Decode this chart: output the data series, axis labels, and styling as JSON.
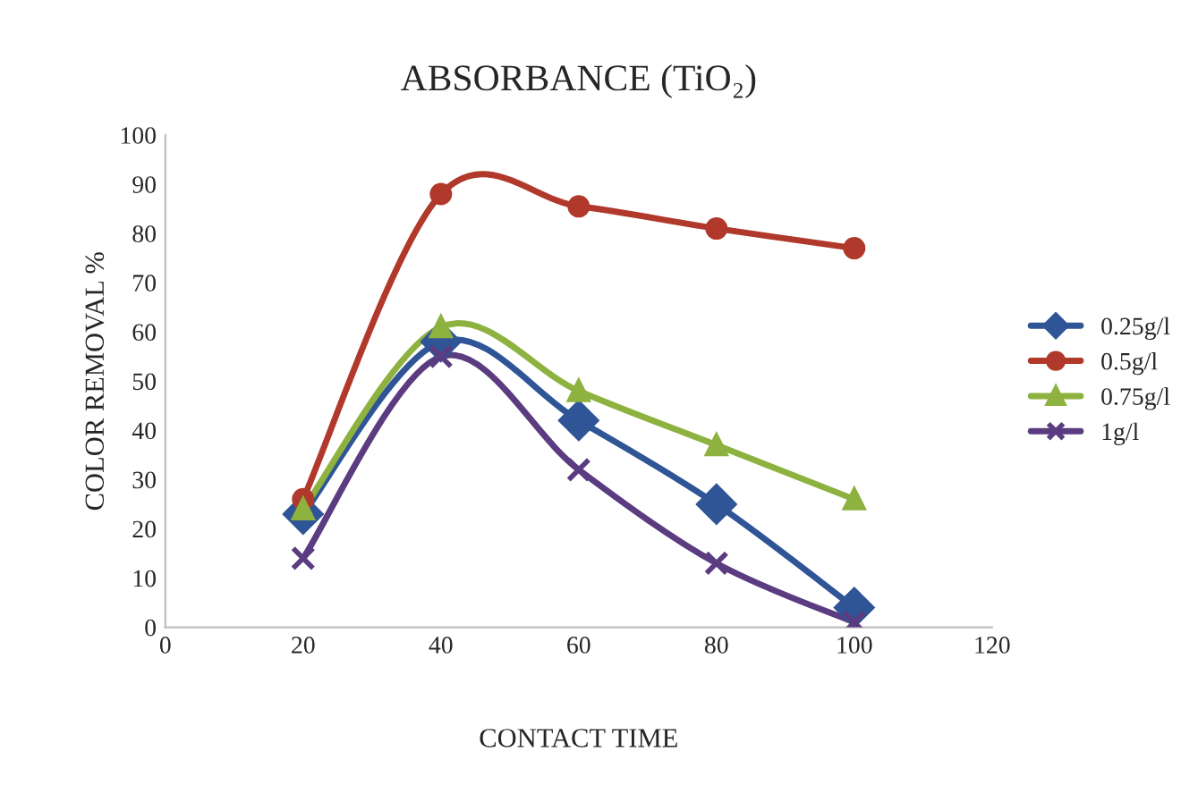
{
  "chart_data": {
    "type": "line",
    "title": "ABSORBANCE (TiO₂)",
    "xlabel": "CONTACT TIME",
    "ylabel": "COLOR REMOVAL %",
    "x": [
      20,
      40,
      60,
      80,
      100
    ],
    "series": [
      {
        "name": "0.25g/l",
        "color": "#2f5597",
        "marker": "diamond",
        "values": [
          23,
          58,
          42,
          25,
          4
        ]
      },
      {
        "name": "0.5g/l",
        "color": "#b0392b",
        "marker": "circle",
        "values": [
          26,
          88,
          85.5,
          81,
          77
        ]
      },
      {
        "name": "0.75g/l",
        "color": "#8db23f",
        "marker": "triangle",
        "values": [
          24,
          61,
          48,
          37,
          26
        ]
      },
      {
        "name": "1g/l",
        "color": "#5b3c80",
        "marker": "cross",
        "values": [
          14,
          55,
          32,
          13,
          1
        ]
      }
    ],
    "xlim": [
      0,
      120
    ],
    "xticks": [
      0,
      20,
      40,
      60,
      80,
      100,
      120
    ],
    "ylim": [
      0,
      100
    ],
    "yticks": [
      0,
      10,
      20,
      30,
      40,
      50,
      60,
      70,
      80,
      90,
      100
    ],
    "grid": false,
    "legend": "right",
    "line_style": "solid"
  }
}
